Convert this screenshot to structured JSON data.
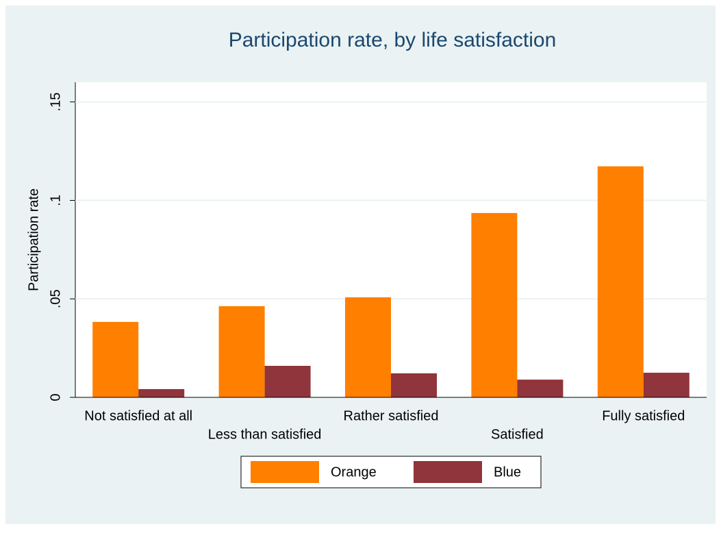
{
  "chart_data": {
    "type": "bar",
    "title": "Participation rate, by life satisfaction",
    "y_label": "Participation rate",
    "categories": [
      "Not satisfied at all",
      "Less than satisfied",
      "Rather satisfied",
      "Satisfied",
      "Fully satisfied"
    ],
    "series": [
      {
        "name": "Orange",
        "color": "#ff7f00",
        "values": [
          0.0383,
          0.0463,
          0.0508,
          0.0936,
          0.1173
        ]
      },
      {
        "name": "Blue",
        "color": "#90353b",
        "values": [
          0.0042,
          0.016,
          0.0122,
          0.009,
          0.0125
        ]
      }
    ],
    "ylim": [
      0,
      0.16
    ],
    "yticks": [
      0,
      {
        "value": 0.05,
        "label": ".05"
      },
      {
        "value": 0.1,
        "label": ".1"
      },
      {
        "value": 0.15,
        "label": ".15"
      }
    ],
    "grid": true
  }
}
